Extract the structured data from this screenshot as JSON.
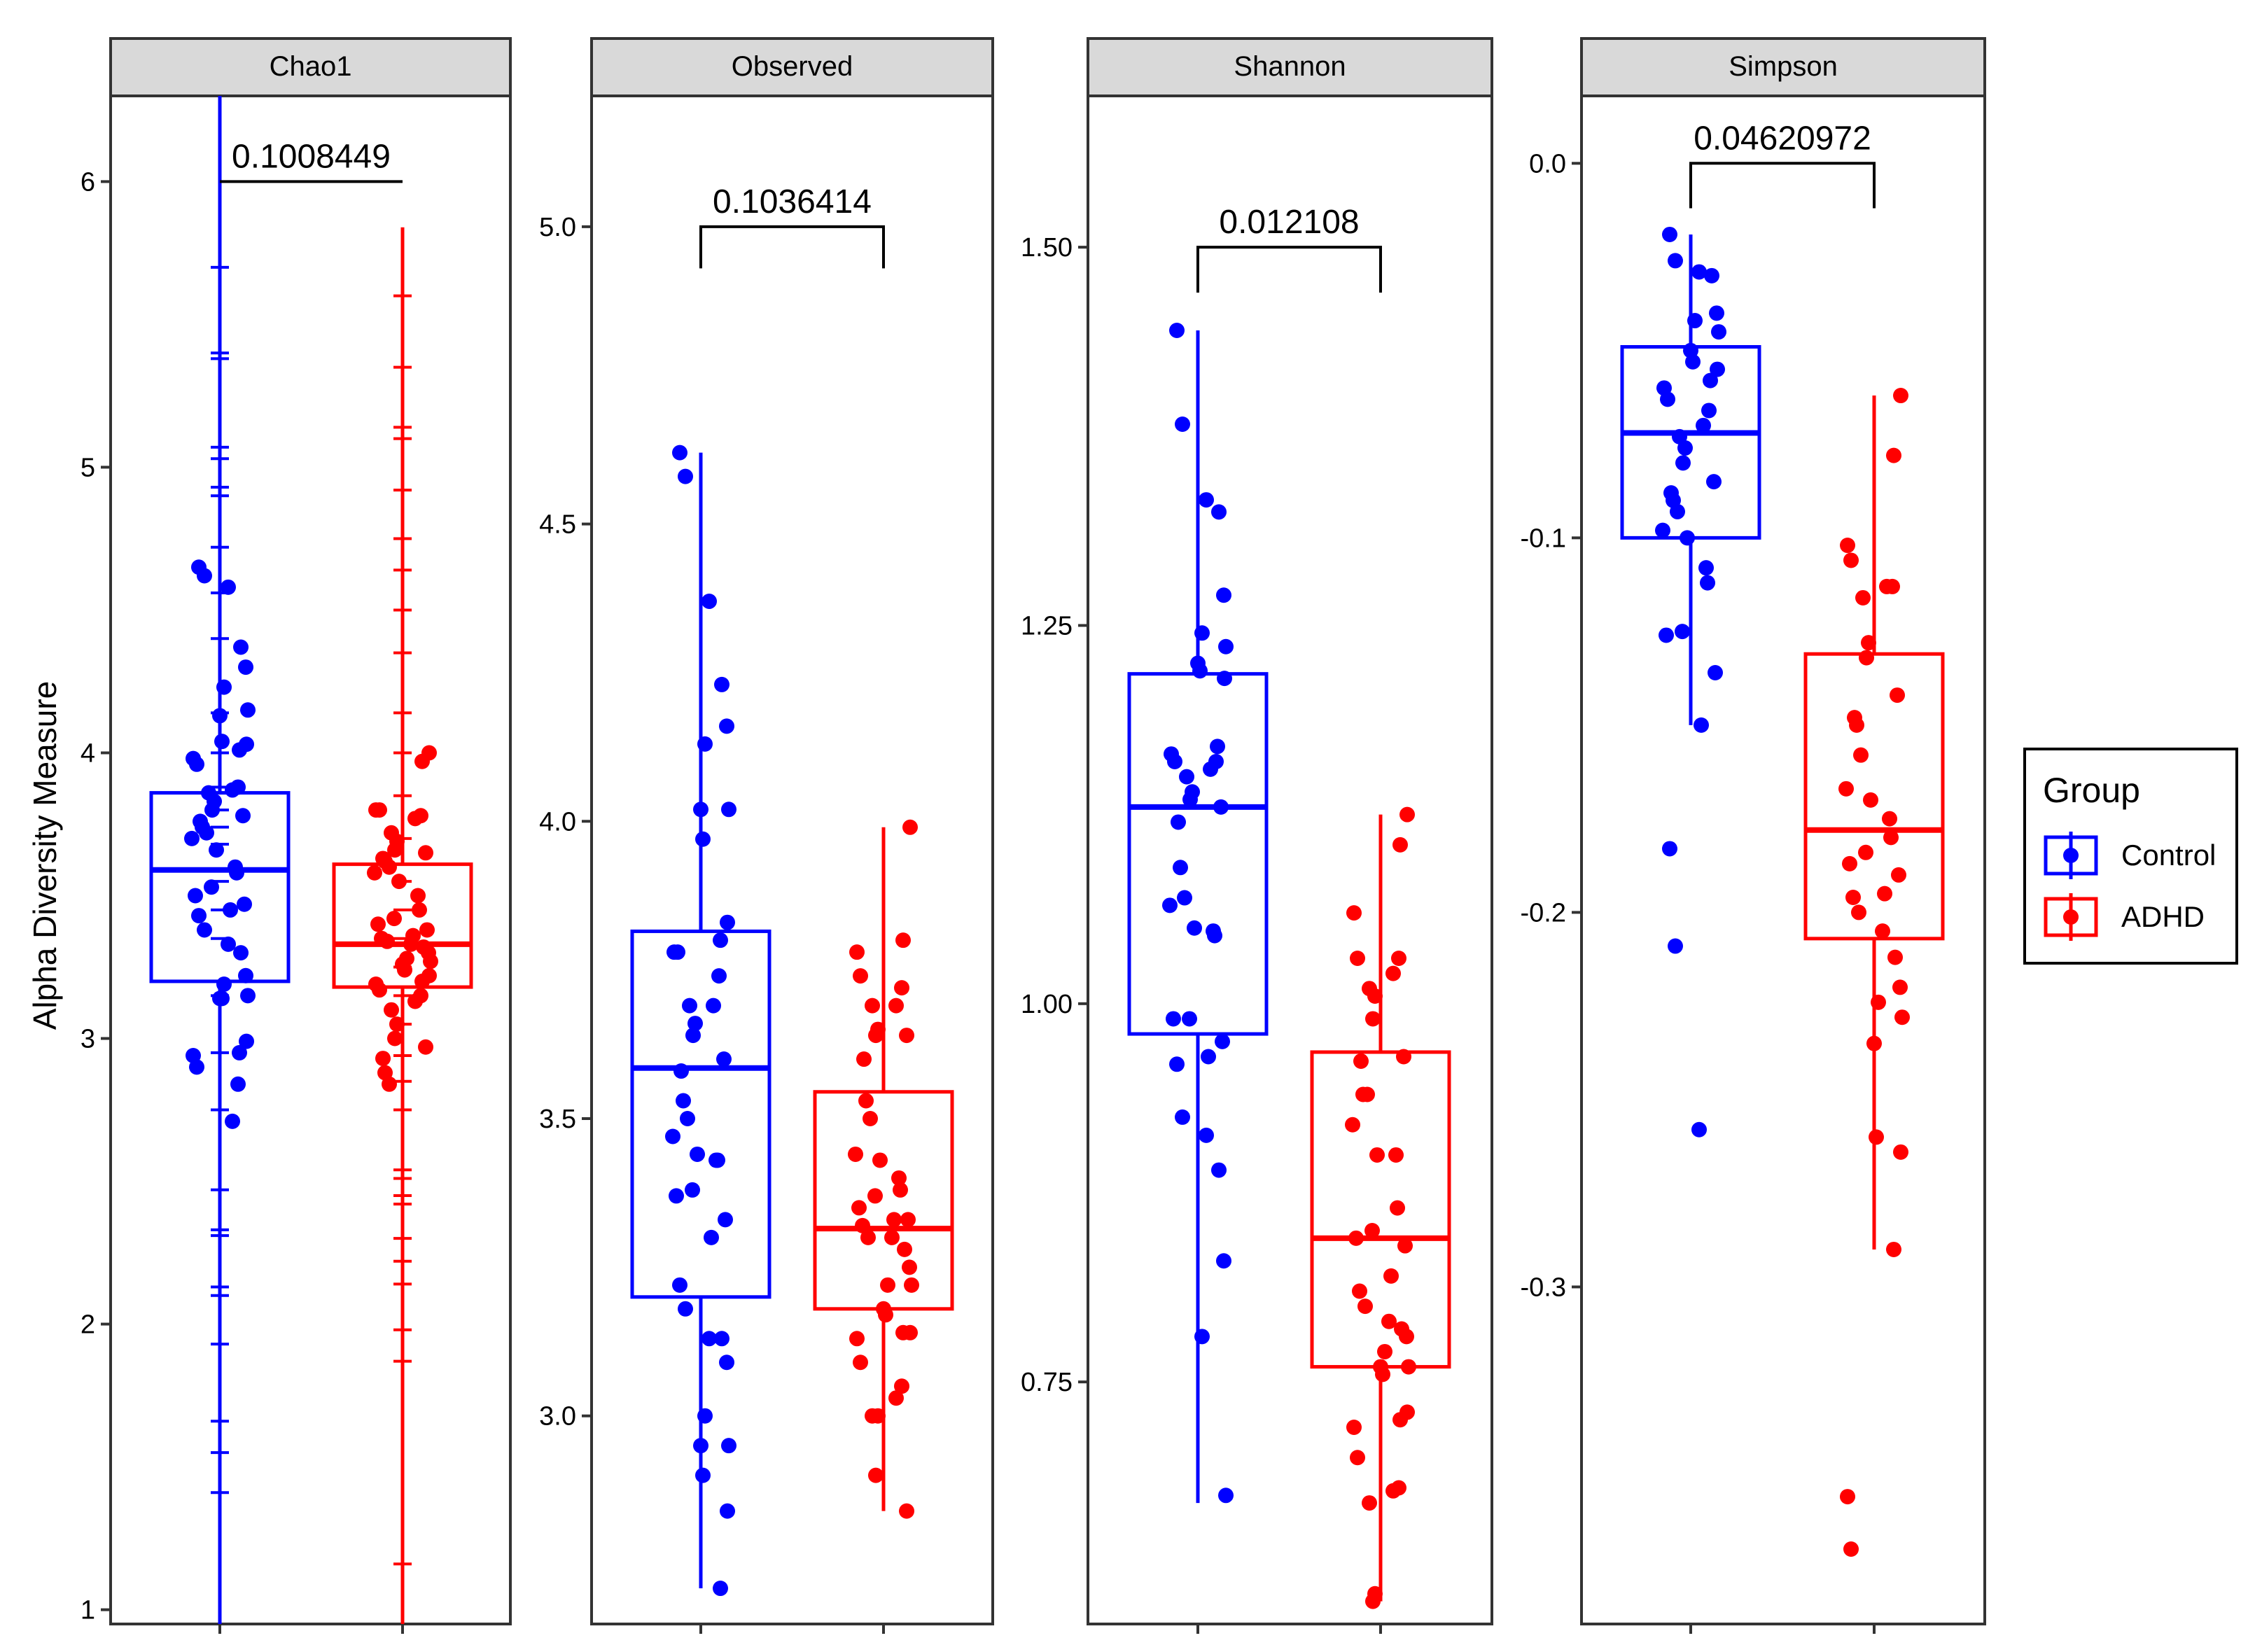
{
  "chart_data": {
    "type": "box",
    "ylabel": "Alpha Diversity Measure",
    "xlabel": "",
    "legend": {
      "title": "Group",
      "position": "right",
      "entries": [
        {
          "name": "Control",
          "color": "#0000FF"
        },
        {
          "name": "ADHD",
          "color": "#FF0000"
        }
      ]
    },
    "groups": [
      "Control",
      "ADHD"
    ],
    "colors": {
      "Control": "#0000FF",
      "ADHD": "#FF0000",
      "strip_fill": "#D9D9D9",
      "frame": "#333333"
    },
    "panels": [
      {
        "name": "Chao1",
        "ylim": [
          0.95,
          6.3
        ],
        "yticks": [
          1,
          2,
          3,
          4,
          5,
          6
        ],
        "tick_labels": [
          "1",
          "2",
          "3",
          "4",
          "5",
          "6"
        ],
        "p_value": "0.1008449",
        "bracket_y": 6.0,
        "bracket_drop": 6.0,
        "groups": [
          {
            "name": "Control",
            "box": {
              "q1": 3.2,
              "median": 3.59,
              "q3": 3.86,
              "whisker_low": 0.9,
              "whisker_high": 6.3
            },
            "error_ticks": [
              5.7,
              5.4,
              5.38,
              5.07,
              5.03,
              4.93,
              4.9,
              4.72,
              4.56,
              4.4,
              4.14,
              4.0,
              3.88,
              3.8,
              3.74,
              3.68,
              3.55,
              3.45,
              3.35,
              3.15,
              2.95,
              2.75,
              2.47,
              2.33,
              2.31,
              2.13,
              2.1,
              1.93,
              1.66,
              1.55,
              1.41
            ],
            "points": [
              4.65,
              4.62,
              4.58,
              4.37,
              4.3,
              4.23,
              4.15,
              4.13,
              4.04,
              4.03,
              4.01,
              3.98,
              3.96,
              3.88,
              3.87,
              3.86,
              3.83,
              3.8,
              3.78,
              3.76,
              3.74,
              3.72,
              3.7,
              3.66,
              3.6,
              3.58,
              3.53,
              3.5,
              3.47,
              3.45,
              3.43,
              3.38,
              3.33,
              3.3,
              3.22,
              3.19,
              3.15,
              3.14,
              3.14,
              2.99,
              2.95,
              2.94,
              2.9,
              2.84,
              2.71
            ]
          },
          {
            "name": "ADHD",
            "box": {
              "q1": 3.18,
              "median": 3.33,
              "q3": 3.61,
              "whisker_low": 0.9,
              "whisker_high": 5.84
            },
            "error_ticks": [
              5.6,
              5.35,
              5.14,
              5.1,
              4.92,
              4.75,
              4.64,
              4.5,
              4.35,
              4.14,
              4.0,
              3.85,
              3.7,
              3.55,
              3.45,
              3.35,
              3.25,
              3.15,
              3.05,
              2.94,
              2.85,
              2.75,
              2.54,
              2.51,
              2.45,
              2.42,
              2.3,
              2.22,
              2.14,
              1.98,
              1.87,
              1.16
            ],
            "points": [
              4.0,
              3.97,
              3.8,
              3.8,
              3.78,
              3.77,
              3.72,
              3.69,
              3.66,
              3.65,
              3.63,
              3.62,
              3.6,
              3.58,
              3.55,
              3.5,
              3.45,
              3.42,
              3.4,
              3.38,
              3.36,
              3.35,
              3.34,
              3.33,
              3.32,
              3.3,
              3.28,
              3.27,
              3.26,
              3.24,
              3.22,
              3.2,
              3.19,
              3.17,
              3.15,
              3.13,
              3.1,
              3.05,
              3.0,
              2.97,
              2.93,
              2.88,
              2.84
            ]
          }
        ]
      },
      {
        "name": "Observed",
        "ylim": [
          2.65,
          5.22
        ],
        "yticks": [
          3.0,
          3.5,
          4.0,
          4.5,
          5.0
        ],
        "tick_labels": [
          "3.0",
          "3.5",
          "4.0",
          "4.5",
          "5.0"
        ],
        "p_value": "0.1036414",
        "bracket_y": 5.0,
        "bracket_drop": 4.93,
        "groups": [
          {
            "name": "Control",
            "box": {
              "q1": 3.2,
              "median": 3.585,
              "q3": 3.815,
              "whisker_low": 2.71,
              "whisker_high": 4.62
            },
            "points": [
              4.62,
              4.58,
              4.37,
              4.23,
              4.16,
              4.13,
              4.02,
              4.02,
              3.97,
              3.83,
              3.8,
              3.78,
              3.78,
              3.74,
              3.69,
              3.69,
              3.66,
              3.64,
              3.6,
              3.58,
              3.53,
              3.5,
              3.47,
              3.44,
              3.43,
              3.43,
              3.38,
              3.37,
              3.33,
              3.3,
              3.22,
              3.18,
              3.13,
              3.13,
              3.09,
              3.0,
              2.95,
              2.95,
              2.9,
              2.84,
              2.71
            ]
          },
          {
            "name": "ADHD",
            "box": {
              "q1": 3.18,
              "median": 3.315,
              "q3": 3.545,
              "whisker_low": 2.84,
              "whisker_high": 3.99
            },
            "points": [
              3.99,
              3.8,
              3.78,
              3.74,
              3.72,
              3.69,
              3.69,
              3.65,
              3.64,
              3.64,
              3.6,
              3.53,
              3.5,
              3.44,
              3.43,
              3.4,
              3.38,
              3.37,
              3.35,
              3.33,
              3.33,
              3.32,
              3.3,
              3.3,
              3.28,
              3.25,
              3.22,
              3.22,
              3.18,
              3.17,
              3.14,
              3.14,
              3.13,
              3.09,
              3.05,
              3.03,
              3.0,
              3.0,
              2.9,
              2.84
            ]
          }
        ]
      },
      {
        "name": "Shannon",
        "ylim": [
          0.59,
          1.6
        ],
        "yticks": [
          0.75,
          1.0,
          1.25,
          1.5
        ],
        "tick_labels": [
          "0.75",
          "1.00",
          "1.25",
          "1.50"
        ],
        "p_value": "0.012108",
        "bracket_y": 1.5,
        "bracket_drop": 1.47,
        "groups": [
          {
            "name": "Control",
            "box": {
              "q1": 0.98,
              "median": 1.13,
              "q3": 1.218,
              "whisker_low": 0.67,
              "whisker_high": 1.445
            },
            "points": [
              1.445,
              1.383,
              1.333,
              1.325,
              1.27,
              1.245,
              1.236,
              1.225,
              1.22,
              1.215,
              1.17,
              1.165,
              1.16,
              1.16,
              1.155,
              1.15,
              1.14,
              1.135,
              1.13,
              1.12,
              1.09,
              1.07,
              1.065,
              1.05,
              1.048,
              1.045,
              0.99,
              0.99,
              0.975,
              0.965,
              0.96,
              0.925,
              0.913,
              0.89,
              0.83,
              0.78,
              0.675
            ]
          },
          {
            "name": "ADHD",
            "box": {
              "q1": 0.76,
              "median": 0.845,
              "q3": 0.968,
              "whisker_low": 0.605,
              "whisker_high": 1.125
            },
            "points": [
              1.125,
              1.105,
              1.06,
              1.03,
              1.03,
              1.02,
              1.01,
              1.005,
              0.99,
              0.965,
              0.962,
              0.94,
              0.94,
              0.92,
              0.9,
              0.9,
              0.865,
              0.85,
              0.845,
              0.84,
              0.82,
              0.81,
              0.8,
              0.79,
              0.785,
              0.78,
              0.77,
              0.76,
              0.76,
              0.755,
              0.73,
              0.725,
              0.72,
              0.7,
              0.68,
              0.678,
              0.67,
              0.61,
              0.605
            ]
          }
        ]
      },
      {
        "name": "Simpson",
        "ylim": [
          -0.39,
          0.018
        ],
        "yticks": [
          0.0,
          -0.1,
          -0.2,
          -0.3
        ],
        "tick_labels": [
          "0.0",
          "-0.1",
          "-0.2",
          "-0.3"
        ],
        "p_value": "0.04620972",
        "bracket_y": 0.0,
        "bracket_drop": -0.012,
        "groups": [
          {
            "name": "Control",
            "box": {
              "q1": -0.1,
              "median": -0.072,
              "q3": -0.049,
              "whisker_low": -0.15,
              "whisker_high": -0.019
            },
            "points": [
              -0.019,
              -0.026,
              -0.029,
              -0.03,
              -0.04,
              -0.042,
              -0.045,
              -0.05,
              -0.053,
              -0.055,
              -0.058,
              -0.06,
              -0.063,
              -0.066,
              -0.07,
              -0.073,
              -0.076,
              -0.08,
              -0.085,
              -0.088,
              -0.09,
              -0.093,
              -0.098,
              -0.1,
              -0.108,
              -0.112,
              -0.125,
              -0.126,
              -0.136,
              -0.15,
              -0.183,
              -0.209,
              -0.258
            ]
          },
          {
            "name": "ADHD",
            "box": {
              "q1": -0.207,
              "median": -0.178,
              "q3": -0.131,
              "whisker_low": -0.29,
              "whisker_high": -0.062
            },
            "points": [
              -0.062,
              -0.078,
              -0.102,
              -0.106,
              -0.113,
              -0.113,
              -0.116,
              -0.128,
              -0.132,
              -0.142,
              -0.148,
              -0.15,
              -0.158,
              -0.167,
              -0.17,
              -0.175,
              -0.18,
              -0.184,
              -0.187,
              -0.19,
              -0.195,
              -0.196,
              -0.2,
              -0.205,
              -0.212,
              -0.22,
              -0.224,
              -0.228,
              -0.235,
              -0.26,
              -0.264,
              -0.29,
              -0.356,
              -0.37
            ]
          }
        ]
      }
    ]
  }
}
